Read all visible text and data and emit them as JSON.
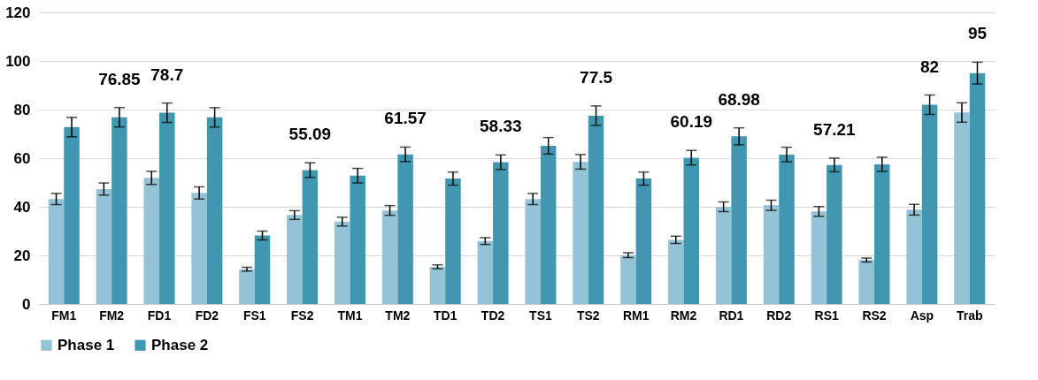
{
  "chart_data": {
    "type": "bar",
    "categories": [
      "FM1",
      "FM2",
      "FD1",
      "FD2",
      "FS1",
      "FS2",
      "TM1",
      "TM2",
      "TD1",
      "TD2",
      "TS1",
      "TS2",
      "RM1",
      "RM2",
      "RD1",
      "RD2",
      "RS1",
      "RS2",
      "Asp",
      "Trab"
    ],
    "series": [
      {
        "name": "Phase 1",
        "color": "#93c3d4",
        "values": [
          43.2,
          47.3,
          51.9,
          45.7,
          14.3,
          36.6,
          33.9,
          38.5,
          15.3,
          25.9,
          43.2,
          58.5,
          20.1,
          26.4,
          40,
          40.6,
          38.1,
          18.1,
          38.8,
          78.8
        ],
        "errors": [
          2.3,
          2.5,
          2.7,
          2.5,
          0.8,
          1.8,
          1.8,
          2,
          0.8,
          1.4,
          2.3,
          3,
          1,
          1.5,
          2,
          2.1,
          2,
          0.8,
          2.2,
          4
        ]
      },
      {
        "name": "Phase 2",
        "color": "#4197b0",
        "values": [
          72.8,
          76.85,
          78.7,
          76.8,
          28.2,
          55.09,
          52.8,
          61.57,
          51.6,
          58.33,
          65.1,
          77.5,
          51.6,
          60.19,
          68.98,
          61.5,
          57.21,
          57.5,
          82,
          95
        ],
        "errors": [
          4,
          4,
          4,
          4,
          1.8,
          3,
          3,
          3,
          2.7,
          3,
          3.4,
          4,
          2.7,
          3,
          3.5,
          3,
          2.8,
          2.9,
          4,
          4.5
        ],
        "value_labels": [
          null,
          "76.85",
          "78.7",
          null,
          null,
          "55.09",
          null,
          "61.57",
          null,
          "58.33",
          null,
          "77.5",
          null,
          "60.19",
          "68.98",
          null,
          "57.21",
          null,
          "82",
          "95"
        ]
      }
    ],
    "ylim": [
      0,
      120
    ],
    "yticks": [
      0,
      20,
      40,
      60,
      80,
      100,
      120
    ],
    "grid": "y",
    "legend": "bottom"
  }
}
